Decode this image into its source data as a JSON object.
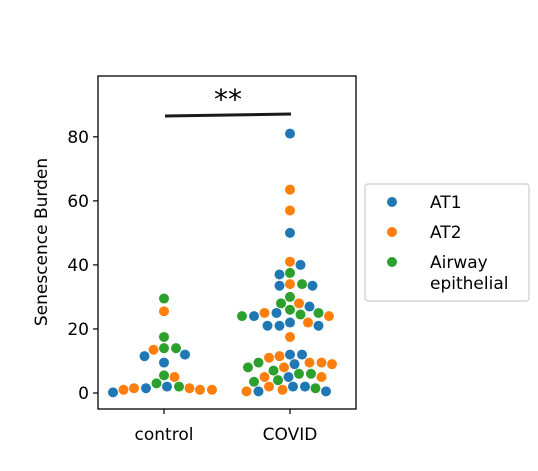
{
  "chart_data": {
    "type": "scatter",
    "subtype": "swarm",
    "title": "",
    "xlabel": "",
    "ylabel": "Senescence Burden",
    "categories": [
      "control",
      "COVID"
    ],
    "ylim": [
      -5,
      99
    ],
    "yticks": [
      0,
      20,
      40,
      60,
      80
    ],
    "grid": false,
    "legend_position": "outside-right",
    "annotation": "**",
    "colors": {
      "AT1": "#1f77b4",
      "AT2": "#ff7f0e",
      "Airway epithelial": "#2ca02c"
    },
    "legend": [
      {
        "name": "AT1",
        "color": "#1f77b4"
      },
      {
        "name": "AT2",
        "color": "#ff7f0e"
      },
      {
        "name": "Airway\nepithelial",
        "color": "#2ca02c"
      }
    ],
    "series": [
      {
        "name": "AT1",
        "points": [
          {
            "x": "control",
            "y": 12
          },
          {
            "x": "control",
            "y": 9.5
          },
          {
            "x": "control",
            "y": 2
          },
          {
            "x": "control",
            "y": 0.2
          },
          {
            "x": "control",
            "y": 1.5
          },
          {
            "x": "control",
            "y": 11.5
          },
          {
            "x": "COVID",
            "y": 81
          },
          {
            "x": "COVID",
            "y": 50
          },
          {
            "x": "COVID",
            "y": 40
          },
          {
            "x": "COVID",
            "y": 37
          },
          {
            "x": "COVID",
            "y": 33.5
          },
          {
            "x": "COVID",
            "y": 33.5
          },
          {
            "x": "COVID",
            "y": 27
          },
          {
            "x": "COVID",
            "y": 25
          },
          {
            "x": "COVID",
            "y": 24
          },
          {
            "x": "COVID",
            "y": 22
          },
          {
            "x": "COVID",
            "y": 21
          },
          {
            "x": "COVID",
            "y": 21
          },
          {
            "x": "COVID",
            "y": 21
          },
          {
            "x": "COVID",
            "y": 12
          },
          {
            "x": "COVID",
            "y": 12
          },
          {
            "x": "COVID",
            "y": 9
          },
          {
            "x": "COVID",
            "y": 5
          },
          {
            "x": "COVID",
            "y": 2
          },
          {
            "x": "COVID",
            "y": 2
          },
          {
            "x": "COVID",
            "y": 0.5
          },
          {
            "x": "COVID",
            "y": 0.5
          }
        ]
      },
      {
        "name": "AT2",
        "points": [
          {
            "x": "control",
            "y": 25.5
          },
          {
            "x": "control",
            "y": 13.5
          },
          {
            "x": "control",
            "y": 5
          },
          {
            "x": "control",
            "y": 1.5
          },
          {
            "x": "control",
            "y": 1
          },
          {
            "x": "control",
            "y": 1
          },
          {
            "x": "control",
            "y": 1
          },
          {
            "x": "control",
            "y": 1.5
          },
          {
            "x": "COVID",
            "y": 63.5
          },
          {
            "x": "COVID",
            "y": 57
          },
          {
            "x": "COVID",
            "y": 41
          },
          {
            "x": "COVID",
            "y": 34
          },
          {
            "x": "COVID",
            "y": 28
          },
          {
            "x": "COVID",
            "y": 25
          },
          {
            "x": "COVID",
            "y": 24
          },
          {
            "x": "COVID",
            "y": 22
          },
          {
            "x": "COVID",
            "y": 17.5
          },
          {
            "x": "COVID",
            "y": 11.5
          },
          {
            "x": "COVID",
            "y": 11
          },
          {
            "x": "COVID",
            "y": 9.5
          },
          {
            "x": "COVID",
            "y": 9.5
          },
          {
            "x": "COVID",
            "y": 9
          },
          {
            "x": "COVID",
            "y": 8
          },
          {
            "x": "COVID",
            "y": 5
          },
          {
            "x": "COVID",
            "y": 5
          },
          {
            "x": "COVID",
            "y": 2
          },
          {
            "x": "COVID",
            "y": 1
          },
          {
            "x": "COVID",
            "y": 0.5
          }
        ]
      },
      {
        "name": "Airway epithelial",
        "points": [
          {
            "x": "control",
            "y": 29.5
          },
          {
            "x": "control",
            "y": 17.5
          },
          {
            "x": "control",
            "y": 14
          },
          {
            "x": "control",
            "y": 14
          },
          {
            "x": "control",
            "y": 5.5
          },
          {
            "x": "control",
            "y": 3
          },
          {
            "x": "control",
            "y": 2
          },
          {
            "x": "COVID",
            "y": 37.5
          },
          {
            "x": "COVID",
            "y": 34
          },
          {
            "x": "COVID",
            "y": 30
          },
          {
            "x": "COVID",
            "y": 28
          },
          {
            "x": "COVID",
            "y": 26
          },
          {
            "x": "COVID",
            "y": 25
          },
          {
            "x": "COVID",
            "y": 24.5
          },
          {
            "x": "COVID",
            "y": 24
          },
          {
            "x": "COVID",
            "y": 9.5
          },
          {
            "x": "COVID",
            "y": 8
          },
          {
            "x": "COVID",
            "y": 7
          },
          {
            "x": "COVID",
            "y": 6
          },
          {
            "x": "COVID",
            "y": 6
          },
          {
            "x": "COVID",
            "y": 4
          },
          {
            "x": "COVID",
            "y": 3.5
          },
          {
            "x": "COVID",
            "y": 1.5
          }
        ]
      }
    ]
  }
}
